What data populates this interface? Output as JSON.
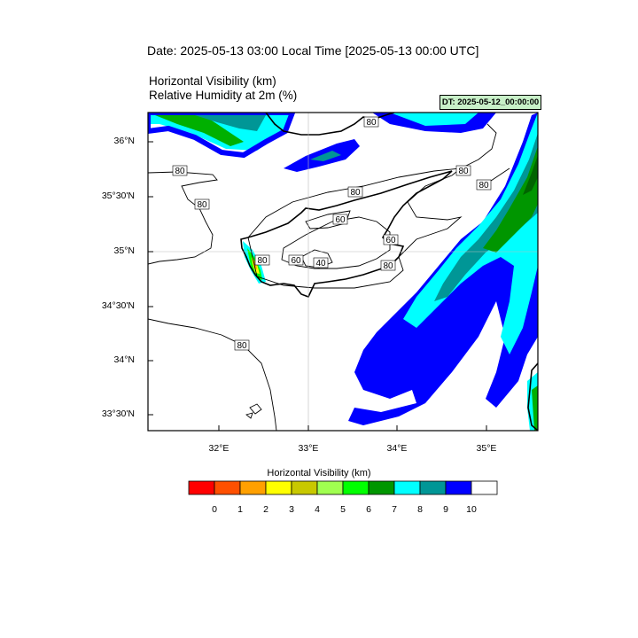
{
  "header": {
    "date_line": "Date: 2025-05-13  03:00 Local Time [2025-05-13  00:00 UTC]",
    "title_line1": "Horizontal Visibility   (km)",
    "title_line2": "Relative Humidity at 2m   (%)",
    "dt_badge": "DT: 2025-05-12_00:00:00",
    "dt_badge_color": "#c8f0c8"
  },
  "axes": {
    "lat_labels": [
      "36°N",
      "35°30'N",
      "35°N",
      "34°30'N",
      "34°N",
      "33°30'N"
    ],
    "lon_labels": [
      "32°E",
      "33°E",
      "34°E",
      "35°E"
    ]
  },
  "contour_labels": [
    "80",
    "80",
    "80",
    "80",
    "80",
    "80",
    "60",
    "60",
    "60",
    "40",
    "80",
    "80",
    "80"
  ],
  "colorbar": {
    "title": "Horizontal Visibility  (km)",
    "colors": [
      "#ff0000",
      "#ff5000",
      "#ffa000",
      "#ffff00",
      "#c8c800",
      "#a0ff50",
      "#00ff00",
      "#009600",
      "#00ffff",
      "#009696",
      "#0000ff",
      "#ffffff"
    ],
    "labels": [
      "0",
      "1",
      "2",
      "3",
      "4",
      "5",
      "6",
      "7",
      "8",
      "9",
      "10"
    ]
  }
}
